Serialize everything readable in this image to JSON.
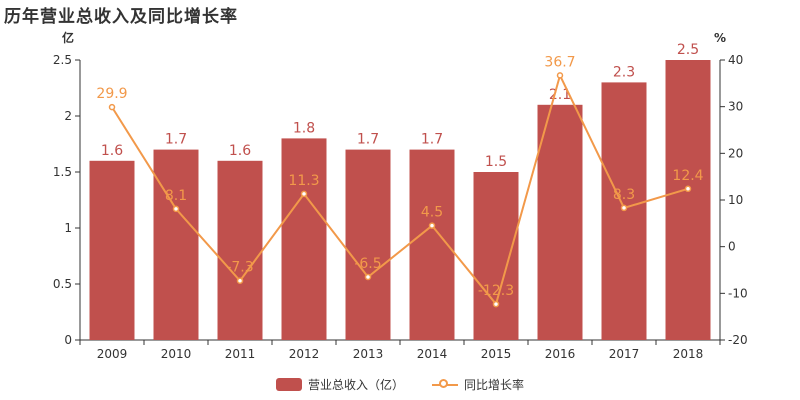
{
  "title": "历年营业总收入及同比增长率",
  "chart_data": {
    "type": "bar",
    "categories": [
      "2009",
      "2010",
      "2011",
      "2012",
      "2013",
      "2014",
      "2015",
      "2016",
      "2017",
      "2018"
    ],
    "series": [
      {
        "name": "营业总收入（亿）",
        "type": "bar",
        "axis": "left",
        "values": [
          1.6,
          1.7,
          1.6,
          1.8,
          1.7,
          1.7,
          1.5,
          2.1,
          2.3,
          2.5
        ],
        "labels": [
          "1.6",
          "1.7",
          "1.6",
          "1.8",
          "1.7",
          "1.7",
          "1.5",
          "2.1",
          "2.3",
          "2.5"
        ]
      },
      {
        "name": "同比增长率",
        "type": "line",
        "axis": "right",
        "values": [
          29.9,
          8.1,
          -7.3,
          11.3,
          -6.5,
          4.5,
          -12.3,
          36.7,
          8.3,
          12.4
        ],
        "labels": [
          "29.9",
          "8.1",
          "-7.3",
          "11.3",
          "-6.5",
          "4.5",
          "-12.3",
          "36.7",
          "8.3",
          "12.4"
        ]
      }
    ],
    "y_left": {
      "unit": "亿",
      "range": [
        0,
        2.5
      ],
      "ticks": [
        "0",
        "0.5",
        "1",
        "1.5",
        "2",
        "2.5"
      ]
    },
    "y_right": {
      "unit": "%",
      "range": [
        -20,
        40
      ],
      "ticks": [
        "-20",
        "-10",
        "0",
        "10",
        "20",
        "30",
        "40"
      ]
    },
    "grid": false,
    "legend_position": "bottom-center",
    "colors": {
      "bar": "#c0504d",
      "line": "#f2994a",
      "bar_label": "#c0504d",
      "line_label": "#f2994a"
    }
  }
}
